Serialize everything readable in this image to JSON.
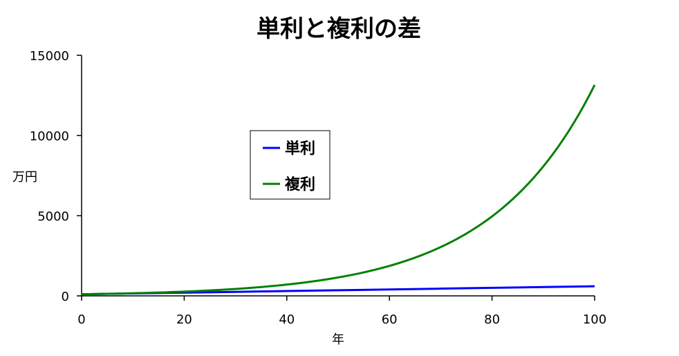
{
  "chart_data": {
    "type": "line",
    "title": "単利と複利の差",
    "xlabel": "年",
    "ylabel": "万円",
    "xlim": [
      0,
      100
    ],
    "ylim": [
      0,
      15000
    ],
    "x_ticks": [
      0,
      20,
      40,
      60,
      80,
      100
    ],
    "y_ticks": [
      0,
      5000,
      10000,
      15000
    ],
    "grid": false,
    "legend_position": "center-left",
    "x": [
      0,
      10,
      20,
      30,
      40,
      50,
      60,
      70,
      80,
      90,
      100
    ],
    "series": [
      {
        "name": "単利",
        "color": "#0000ff",
        "values": [
          100,
          150,
          200,
          250,
          300,
          350,
          400,
          450,
          500,
          550,
          600
        ]
      },
      {
        "name": "複利",
        "color": "#008000",
        "values": [
          100,
          163,
          265,
          432,
          704,
          1147,
          1868,
          3043,
          4956,
          8073,
          13150
        ]
      }
    ]
  }
}
